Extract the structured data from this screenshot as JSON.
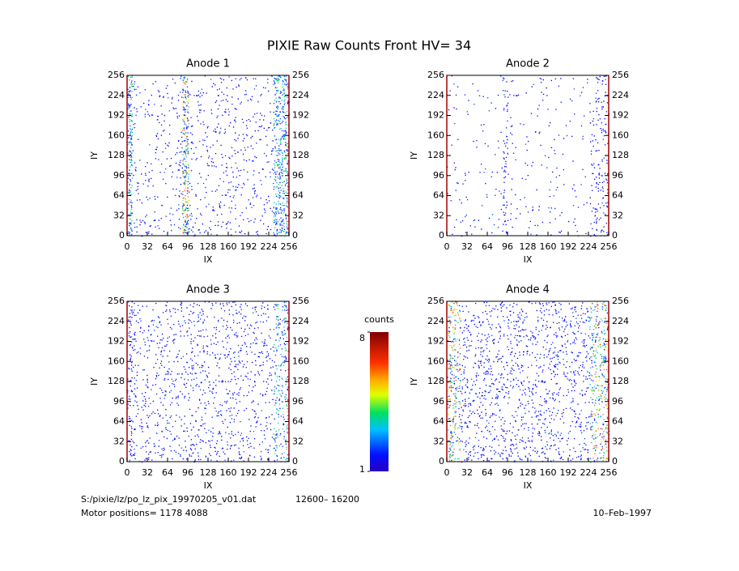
{
  "title": "PIXIE Raw Counts Front HV= 34",
  "chart_data": [
    {
      "type": "heatmap",
      "title": "Anode 1",
      "xlabel": "IX",
      "ylabel": "IY",
      "xlim": [
        0,
        256
      ],
      "ylim": [
        0,
        256
      ],
      "xticks": [
        0,
        32,
        64,
        96,
        128,
        160,
        192,
        224,
        256
      ],
      "yticks": [
        0,
        32,
        64,
        96,
        128,
        160,
        192,
        224,
        256
      ]
    },
    {
      "type": "heatmap",
      "title": "Anode 2",
      "xlabel": "IX",
      "ylabel": "IY",
      "xlim": [
        0,
        256
      ],
      "ylim": [
        0,
        256
      ],
      "xticks": [
        0,
        32,
        64,
        96,
        128,
        160,
        192,
        224,
        256
      ],
      "yticks": [
        0,
        32,
        64,
        96,
        128,
        160,
        192,
        224,
        256
      ]
    },
    {
      "type": "heatmap",
      "title": "Anode 3",
      "xlabel": "IX",
      "ylabel": "IY",
      "xlim": [
        0,
        256
      ],
      "ylim": [
        0,
        256
      ],
      "xticks": [
        0,
        32,
        64,
        96,
        128,
        160,
        192,
        224,
        256
      ],
      "yticks": [
        0,
        32,
        64,
        96,
        128,
        160,
        192,
        224,
        256
      ]
    },
    {
      "type": "heatmap",
      "title": "Anode 4",
      "xlabel": "IX",
      "ylabel": "IY",
      "xlim": [
        0,
        256
      ],
      "ylim": [
        0,
        256
      ],
      "xticks": [
        0,
        32,
        64,
        96,
        128,
        160,
        192,
        224,
        256
      ],
      "yticks": [
        0,
        32,
        64,
        96,
        128,
        160,
        192,
        224,
        256
      ]
    }
  ],
  "colorbar": {
    "label": "counts",
    "lim": [
      1,
      8
    ],
    "ticks": [
      1,
      8
    ]
  },
  "footer": {
    "file": "S:/pixie/lz/po_lz_pix_19970205_v01.dat",
    "range": "12600– 16200",
    "motor": "Motor positions= 1178 4088",
    "date": "10–Feb–1997"
  }
}
